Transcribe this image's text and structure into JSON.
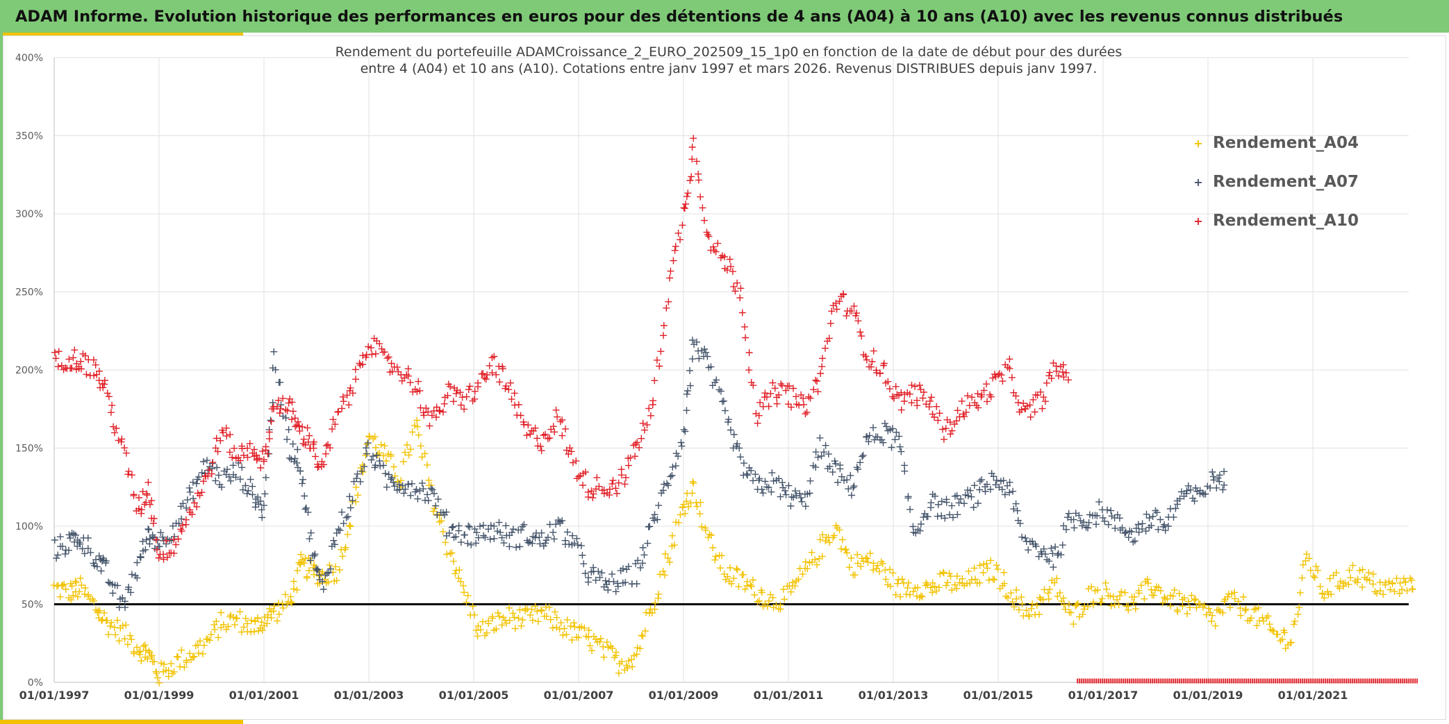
{
  "header": {
    "title": "ADAM Informe. Evolution historique des performances en euros pour des détentions de 4 ans (A04) à 10 ans (A10) avec les revenus connus distribués"
  },
  "colors": {
    "banner": "#7fca77",
    "accent": "#f2c200",
    "A04": "#f2c200",
    "A07": "#44546a",
    "A10": "#e01f26",
    "reference_line": "#000000",
    "grid": "#e0e0e0"
  },
  "chart_data": {
    "type": "scatter",
    "title_line1": "Rendement du portefeuille ADAMCroissance_2_EURO_202509_15_1p0  en fonction de la date de début pour des durées",
    "title_line2": "entre 4 (A04) et 10 ans (A10). Cotations entre janv 1997 et mars 2026. Revenus DISTRIBUES depuis janv 1997.",
    "xlabel": "",
    "ylabel": "",
    "x_range": [
      1997.0,
      2023.0
    ],
    "ylim": [
      0,
      400
    ],
    "y_ticks": [
      0,
      50,
      100,
      150,
      200,
      250,
      300,
      350,
      400
    ],
    "y_tick_labels": [
      "0%",
      "50%",
      "100%",
      "150%",
      "200%",
      "250%",
      "300%",
      "350%",
      "400%"
    ],
    "x_ticks": [
      1997,
      1999,
      2001,
      2003,
      2005,
      2007,
      2009,
      2011,
      2013,
      2015,
      2017,
      2019,
      2021
    ],
    "x_tick_labels": [
      "01/01/1997",
      "01/01/1999",
      "01/01/2001",
      "01/01/2003",
      "01/01/2005",
      "01/01/2007",
      "01/01/2009",
      "01/01/2011",
      "01/01/2013",
      "01/01/2015",
      "01/01/2017",
      "01/01/2019",
      "01/01/2021"
    ],
    "reference_line_y": 50,
    "legend_position": "top-right",
    "marker": "+",
    "series": [
      {
        "name": "Rendement_A04",
        "x": [
          1997.0,
          1997.3,
          1997.5,
          1997.8,
          1998.0,
          1998.3,
          1998.6,
          1998.8,
          1999.0,
          1999.3,
          1999.6,
          1999.9,
          2000.2,
          2000.5,
          2000.8,
          2001.0,
          2001.2,
          2001.5,
          2001.7,
          2001.9,
          2002.1,
          2002.4,
          2002.7,
          2003.0,
          2003.3,
          2003.6,
          2003.9,
          2004.2,
          2004.5,
          2004.8,
          2005.1,
          2005.4,
          2005.7,
          2006.0,
          2006.3,
          2006.6,
          2006.9,
          2007.2,
          2007.5,
          2007.8,
          2008.1,
          2008.4,
          2008.7,
          2009.0,
          2009.2,
          2009.5,
          2009.8,
          2010.1,
          2010.4,
          2010.7,
          2011.0,
          2011.3,
          2011.6,
          2011.9,
          2012.2,
          2012.5,
          2012.8,
          2013.1,
          2013.4,
          2013.7,
          2014.0,
          2014.3,
          2014.6,
          2014.9,
          2015.2,
          2015.5,
          2015.8,
          2016.1,
          2016.4,
          2016.7,
          2017.0,
          2017.3,
          2017.6,
          2017.9,
          2018.2,
          2018.5,
          2018.8,
          2019.1,
          2019.4,
          2019.7,
          2020.0,
          2020.3,
          2020.6,
          2020.9,
          2021.2,
          2021.5,
          2021.8,
          2022.1,
          2022.4,
          2022.7
        ],
        "values": [
          60,
          58,
          60,
          48,
          38,
          32,
          22,
          18,
          5,
          12,
          18,
          25,
          38,
          40,
          35,
          40,
          45,
          52,
          75,
          72,
          68,
          72,
          110,
          158,
          145,
          130,
          165,
          120,
          88,
          60,
          32,
          38,
          42,
          40,
          44,
          38,
          32,
          28,
          20,
          12,
          18,
          50,
          80,
          112,
          125,
          90,
          70,
          65,
          58,
          52,
          55,
          70,
          85,
          100,
          75,
          78,
          72,
          60,
          62,
          60,
          65,
          62,
          68,
          72,
          60,
          45,
          50,
          62,
          40,
          55,
          58,
          54,
          50,
          62,
          55,
          50,
          48,
          40,
          52,
          48,
          40,
          30,
          28,
          80,
          58,
          65,
          70,
          64,
          60,
          62
        ]
      },
      {
        "name": "Rendement_A07",
        "x": [
          1997.0,
          1997.3,
          1997.5,
          1997.8,
          1998.0,
          1998.3,
          1998.6,
          1998.8,
          1999.0,
          1999.3,
          1999.6,
          1999.9,
          2000.2,
          2000.5,
          2000.8,
          2001.0,
          2001.2,
          2001.5,
          2001.7,
          2001.9,
          2002.1,
          2002.4,
          2002.7,
          2003.0,
          2003.3,
          2003.6,
          2003.9,
          2004.2,
          2004.5,
          2004.8,
          2005.1,
          2005.4,
          2005.7,
          2006.0,
          2006.3,
          2006.6,
          2006.9,
          2007.2,
          2007.5,
          2007.8,
          2008.1,
          2008.4,
          2008.7,
          2009.0,
          2009.2,
          2009.5,
          2009.8,
          2010.1,
          2010.4,
          2010.7,
          2011.0,
          2011.3,
          2011.6,
          2011.9,
          2012.2,
          2012.5,
          2012.8,
          2013.1,
          2013.4,
          2013.7,
          2014.0,
          2014.3,
          2014.6,
          2014.9,
          2015.2,
          2015.5,
          2015.8,
          2016.1,
          2016.4,
          2016.7,
          2017.0,
          2017.3,
          2017.6,
          2017.9,
          2018.2,
          2018.5,
          2018.8,
          2019.1
        ],
        "values": [
          85,
          90,
          92,
          80,
          70,
          48,
          75,
          95,
          90,
          100,
          120,
          140,
          130,
          135,
          120,
          110,
          205,
          150,
          140,
          85,
          60,
          95,
          120,
          150,
          130,
          128,
          125,
          120,
          100,
          95,
          95,
          98,
          92,
          95,
          90,
          100,
          90,
          70,
          62,
          65,
          70,
          100,
          130,
          160,
          220,
          200,
          170,
          140,
          125,
          128,
          120,
          115,
          150,
          135,
          125,
          155,
          160,
          155,
          95,
          115,
          110,
          115,
          120,
          130,
          125,
          90,
          85,
          80,
          105,
          105,
          110,
          100,
          95,
          105,
          100,
          120,
          118,
          130
        ]
      },
      {
        "name": "Rendement_A10",
        "x": [
          1997.0,
          1997.3,
          1997.5,
          1997.8,
          1998.0,
          1998.3,
          1998.6,
          1998.8,
          1999.0,
          1999.3,
          1999.6,
          1999.9,
          2000.2,
          2000.5,
          2000.8,
          2001.0,
          2001.2,
          2001.5,
          2001.7,
          2001.9,
          2002.1,
          2002.4,
          2002.7,
          2003.0,
          2003.3,
          2003.6,
          2003.9,
          2004.2,
          2004.5,
          2004.8,
          2005.1,
          2005.4,
          2005.7,
          2006.0,
          2006.3,
          2006.6,
          2006.9,
          2007.2,
          2007.5,
          2007.8,
          2008.1,
          2008.4,
          2008.7,
          2009.0,
          2009.2,
          2009.5,
          2009.8,
          2010.1,
          2010.4,
          2010.7,
          2011.0,
          2011.3,
          2011.6,
          2011.9,
          2012.2,
          2012.5,
          2012.8,
          2013.1,
          2013.4,
          2013.7,
          2014.0,
          2014.3,
          2014.6,
          2014.9,
          2015.2,
          2015.5,
          2015.8,
          2016.1
        ],
        "values": [
          205,
          208,
          206,
          200,
          185,
          150,
          110,
          125,
          80,
          90,
          110,
          130,
          160,
          145,
          150,
          140,
          180,
          175,
          160,
          155,
          135,
          170,
          190,
          220,
          205,
          200,
          190,
          165,
          185,
          180,
          190,
          205,
          185,
          160,
          155,
          170,
          140,
          125,
          125,
          128,
          150,
          175,
          250,
          300,
          345,
          280,
          270,
          250,
          170,
          185,
          185,
          175,
          195,
          245,
          240,
          210,
          200,
          180,
          185,
          180,
          160,
          175,
          180,
          190,
          200,
          170,
          180,
          200
        ]
      }
    ]
  }
}
